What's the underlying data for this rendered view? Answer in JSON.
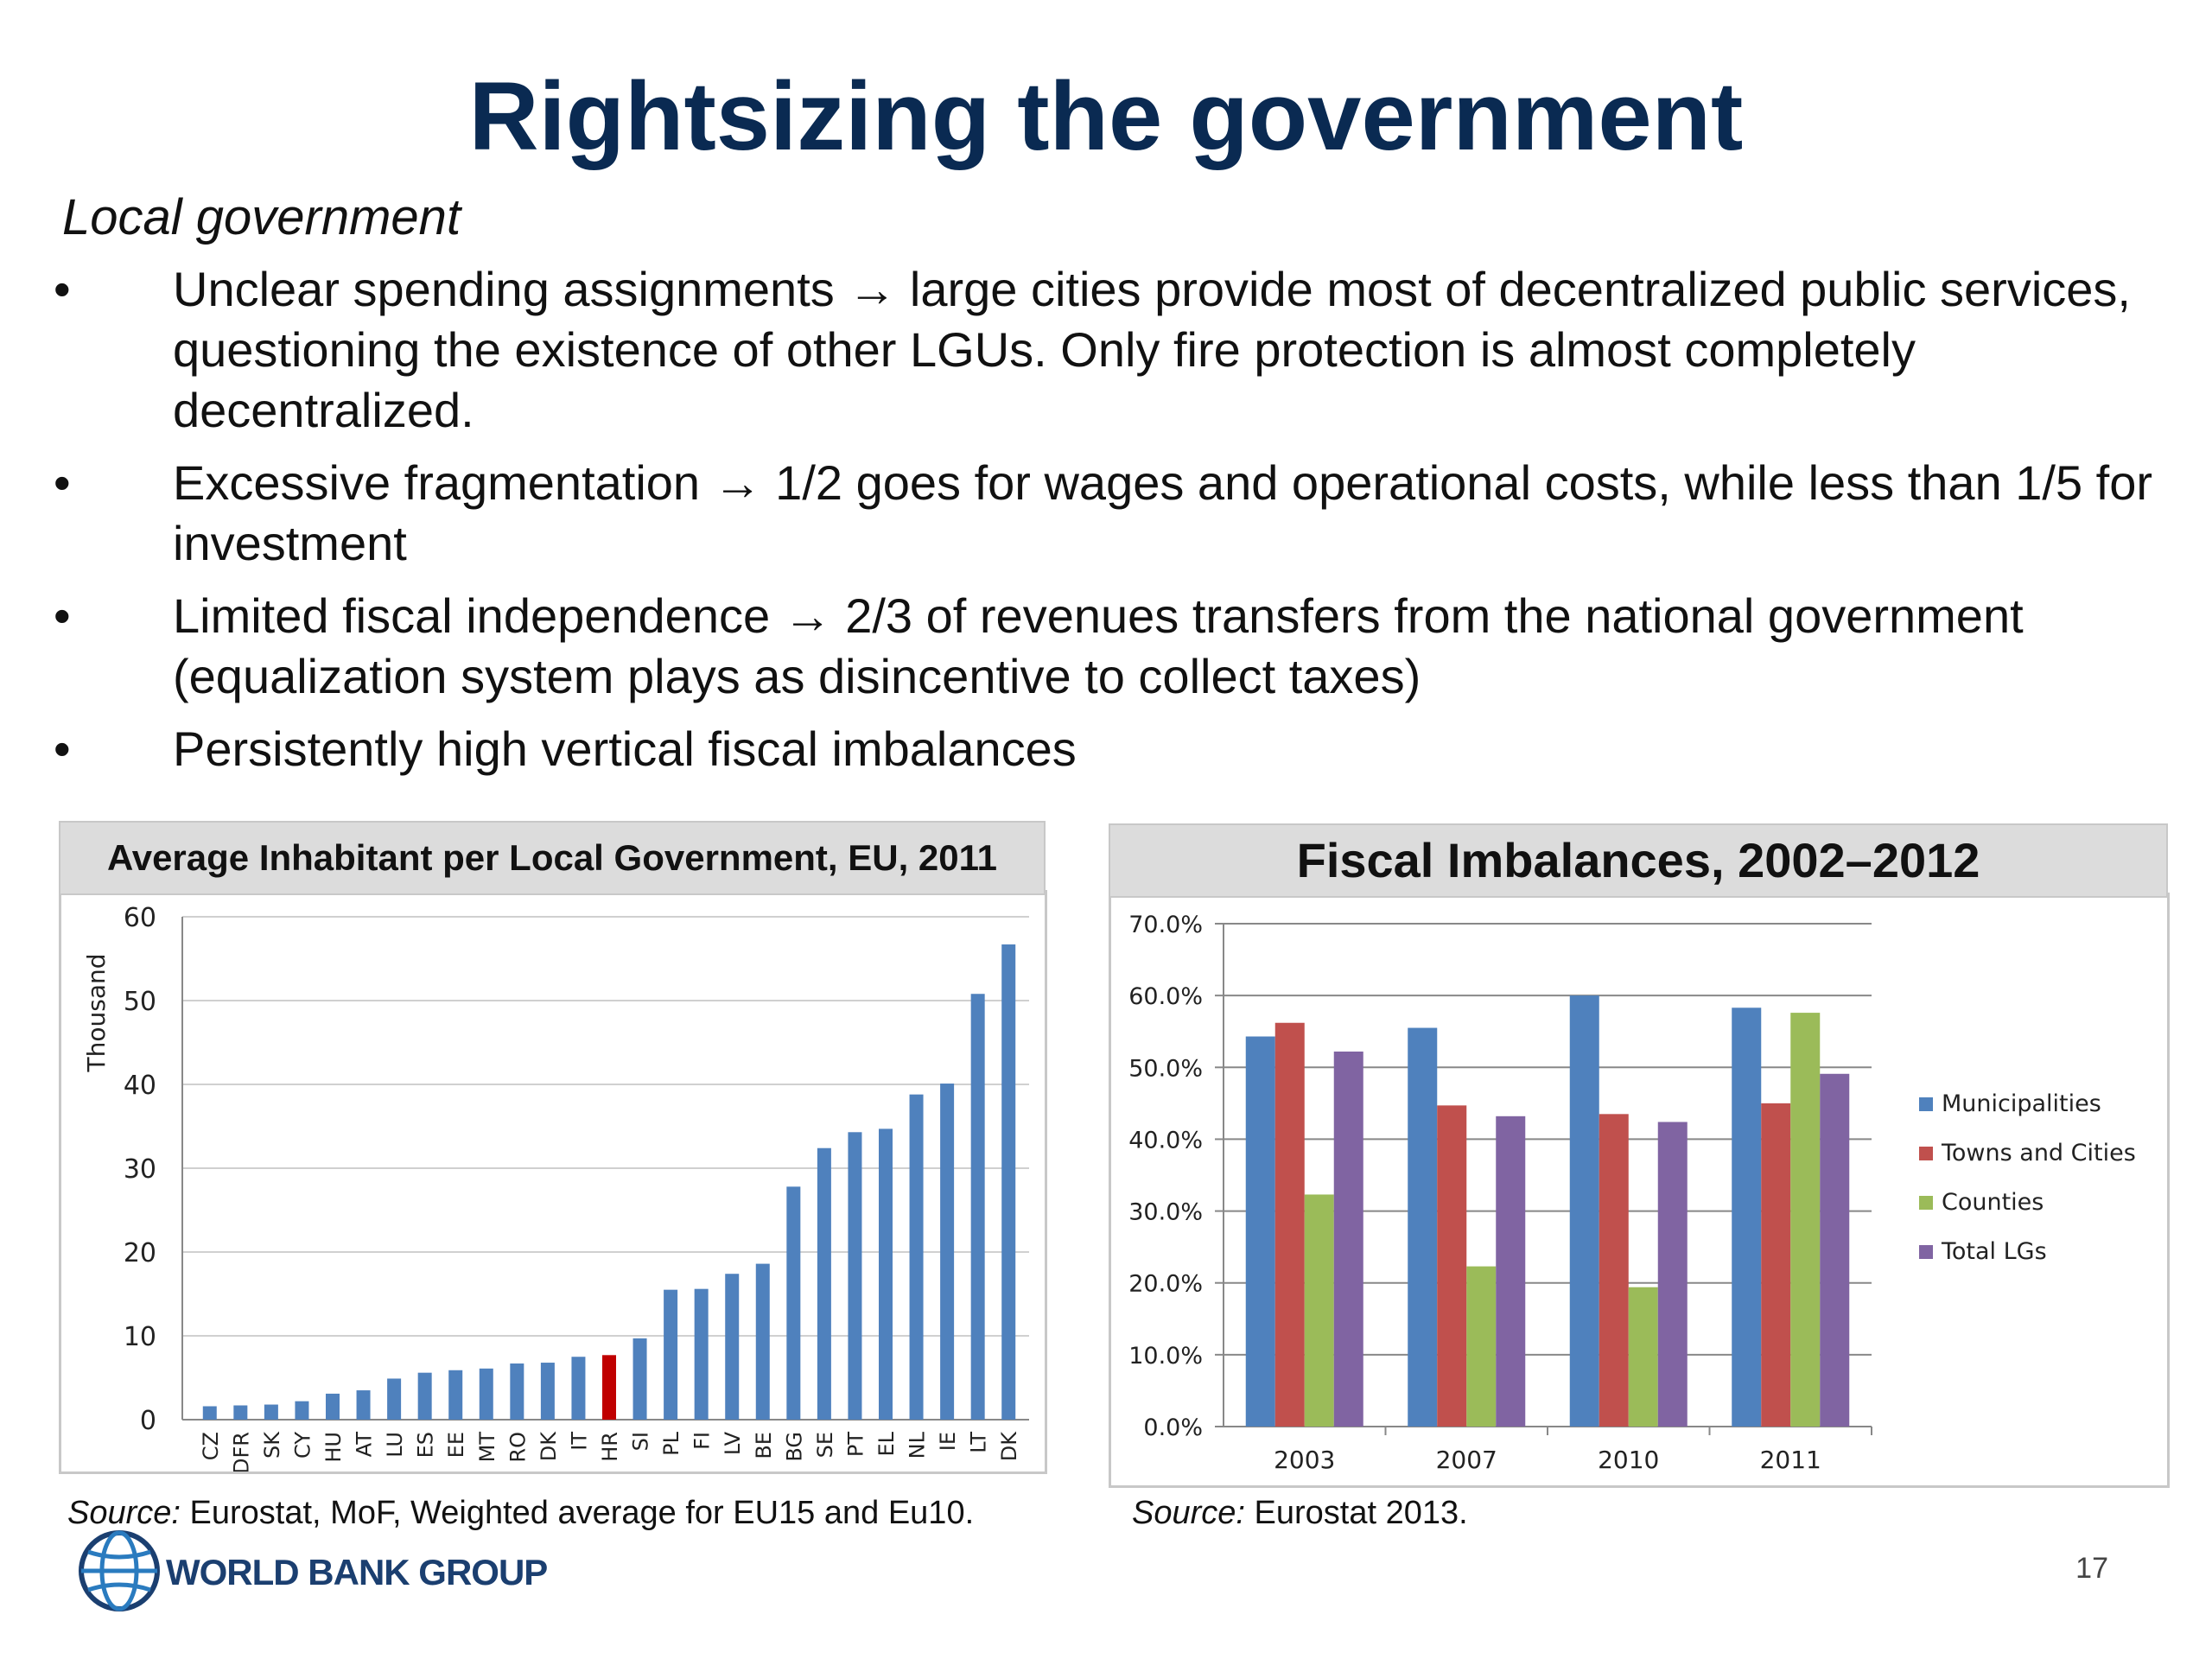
{
  "title": "Rightsizing the government",
  "subtitle": "Local government",
  "bullets": [
    {
      "marker": "•",
      "text": "Unclear spending assignments → large cities provide most of decentralized public services, questioning the existence of other LGUs. Only fire protection is almost completely decentralized."
    },
    {
      "marker": "•",
      "text": "Excessive fragmentation → 1/2 goes for wages and operational costs, while less than 1/5 for investment"
    },
    {
      "marker": "•",
      "text": "Limited fiscal independence → 2/3 of revenues transfers from the national government (equalization system plays as disincentive to collect taxes)"
    },
    {
      "marker": "•",
      "text": "Persistently high vertical fiscal imbalances"
    }
  ],
  "left_source": {
    "label": "Source:",
    "text": " Eurostat, MoF, Weighted average for EU15 and Eu10."
  },
  "right_source": {
    "label": "Source:",
    "text": " Eurostat 2013."
  },
  "logo_text": "WORLD BANK GROUP",
  "page_number": "17",
  "colors": {
    "title": "#0a2a52",
    "bar_blue": "#4f81bd",
    "bar_highlight": "#c00000",
    "municipalities": "#4f81bd",
    "towns": "#c0504d",
    "counties": "#9bbb59",
    "total": "#8064a2"
  },
  "chart_data": [
    {
      "type": "bar",
      "title": "Average Inhabitant per Local Government, EU, 2011",
      "ylabel": "Thousand",
      "xlabel": "",
      "ylim": [
        0,
        60
      ],
      "yticks": [
        "0",
        "10",
        "20",
        "30",
        "40",
        "50",
        "60"
      ],
      "grid": true,
      "categories": [
        "CZ",
        "DFR",
        "SK",
        "CY",
        "HU",
        "AT",
        "LU",
        "ES",
        "EE",
        "MT",
        "RO",
        "DK",
        "IT",
        "HR",
        "SI",
        "PL",
        "FI",
        "LV",
        "BE",
        "BG",
        "SE",
        "PT",
        "EL",
        "NL",
        "IE",
        "LT",
        "DK"
      ],
      "values": [
        1.6,
        1.7,
        1.8,
        2.2,
        3.1,
        3.5,
        4.9,
        5.6,
        5.9,
        6.1,
        6.7,
        6.8,
        7.5,
        7.7,
        9.7,
        15.5,
        15.6,
        17.4,
        18.6,
        27.8,
        32.4,
        34.3,
        34.7,
        38.8,
        40.1,
        50.8,
        56.7
      ],
      "highlight_category": "HR"
    },
    {
      "type": "bar",
      "title": "Fiscal Imbalances, 2002–2012",
      "xlabel": "",
      "ylabel": "",
      "ylim": [
        0,
        70
      ],
      "yticks": [
        "0.0%",
        "10.0%",
        "20.0%",
        "30.0%",
        "40.0%",
        "50.0%",
        "60.0%",
        "70.0%"
      ],
      "grid": true,
      "legend": "right",
      "categories": [
        "2003",
        "2007",
        "2010",
        "2011"
      ],
      "series": [
        {
          "name": "Municipalities",
          "values": [
            54.3,
            55.5,
            60.0,
            58.3
          ]
        },
        {
          "name": "Towns and Cities",
          "values": [
            56.2,
            44.7,
            43.5,
            45.0
          ]
        },
        {
          "name": "Counties",
          "values": [
            32.3,
            22.3,
            19.4,
            57.6
          ]
        },
        {
          "name": "Total LGs",
          "values": [
            52.2,
            43.2,
            42.4,
            49.1
          ]
        }
      ]
    }
  ]
}
